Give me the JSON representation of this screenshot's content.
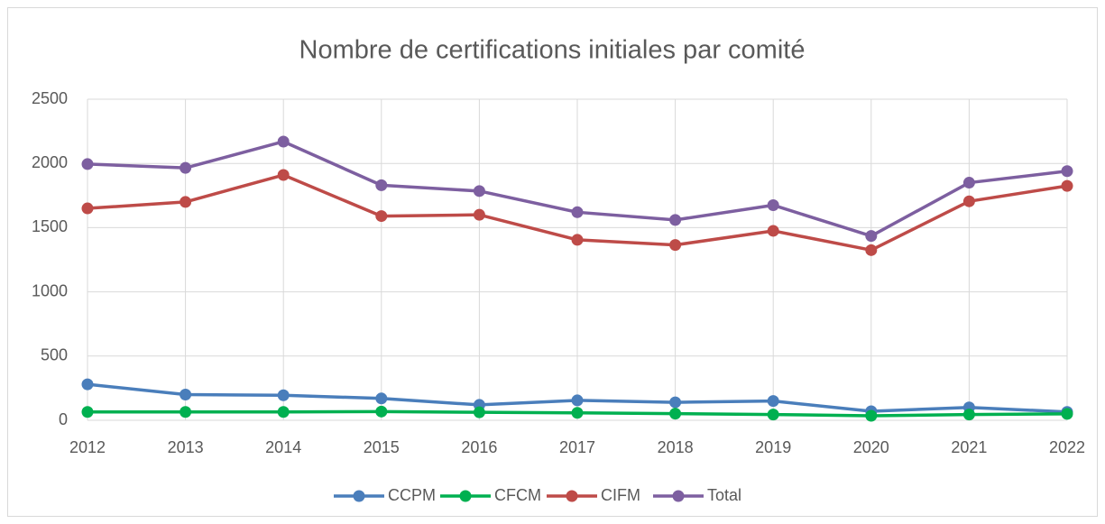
{
  "chart_data": {
    "type": "line",
    "title": "Nombre de certifications initiales par comité",
    "categories": [
      "2012",
      "2013",
      "2014",
      "2015",
      "2016",
      "2017",
      "2018",
      "2019",
      "2020",
      "2021",
      "2022"
    ],
    "series": [
      {
        "name": "CCPM",
        "color": "#4a7ebb",
        "values": [
          280,
          200,
          195,
          170,
          120,
          155,
          140,
          150,
          70,
          100,
          65
        ]
      },
      {
        "name": "CFCM",
        "color": "#00b050",
        "values": [
          65,
          65,
          65,
          68,
          62,
          58,
          52,
          45,
          35,
          45,
          50
        ]
      },
      {
        "name": "CIFM",
        "color": "#be4b48",
        "values": [
          1650,
          1700,
          1910,
          1590,
          1600,
          1405,
          1365,
          1475,
          1325,
          1705,
          1825
        ]
      },
      {
        "name": "Total",
        "color": "#7d5fa0",
        "values": [
          1995,
          1965,
          2170,
          1830,
          1785,
          1620,
          1560,
          1675,
          1435,
          1850,
          1940
        ]
      }
    ],
    "ylim": [
      0,
      2500
    ],
    "yticks": [
      0,
      500,
      1000,
      1500,
      2000,
      2500
    ],
    "grid": true,
    "legend": "bottom"
  }
}
